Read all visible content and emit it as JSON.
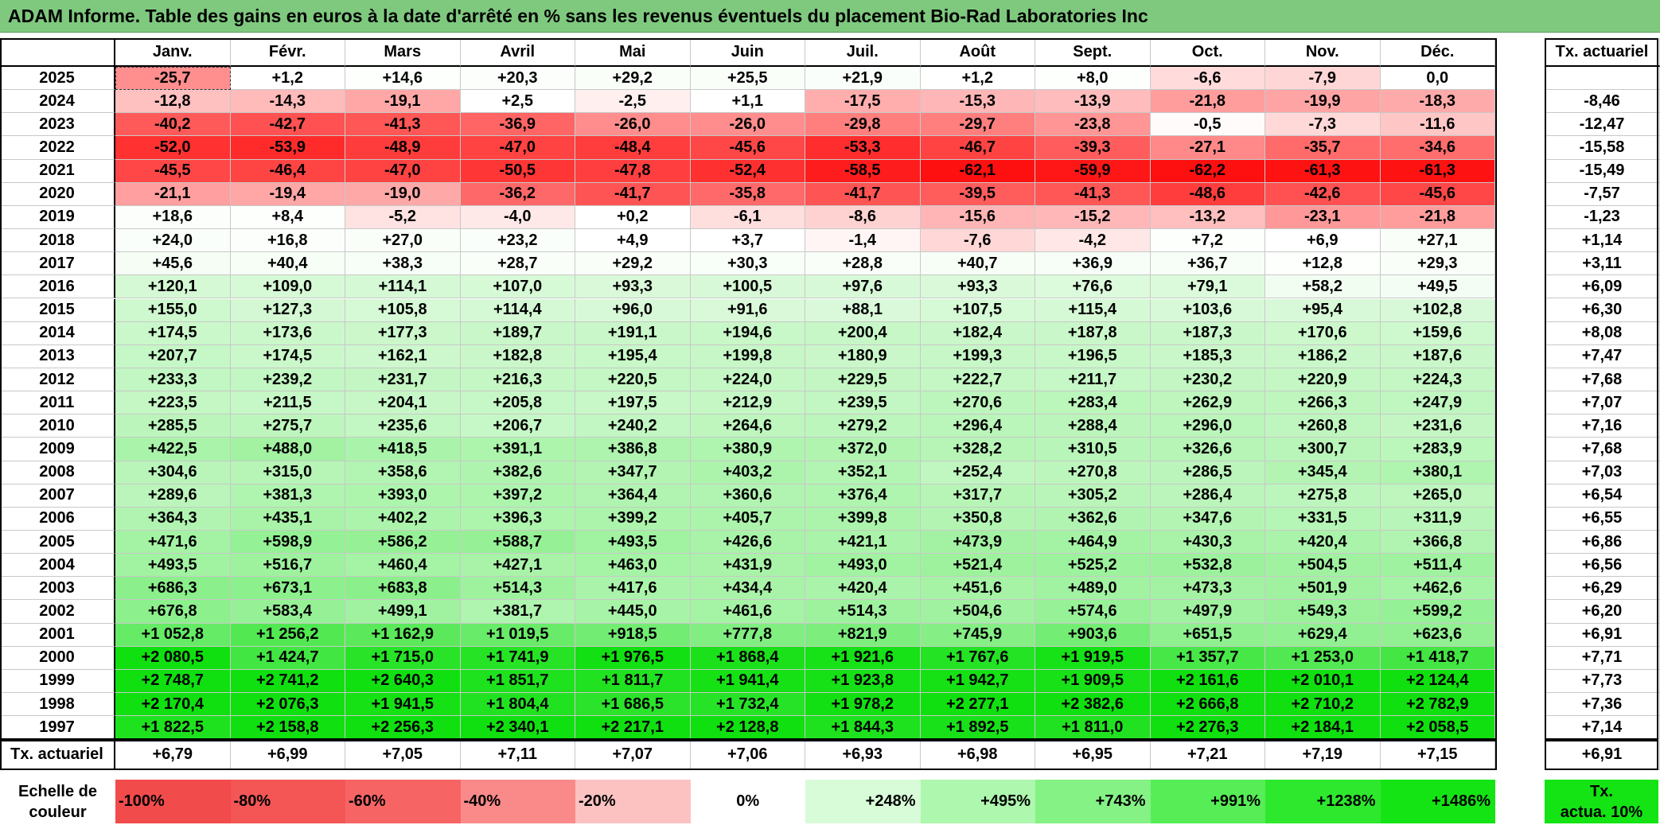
{
  "title": "ADAM Informe. Table des gains en euros à la date d'arrêté en % sans les revenus éventuels du placement Bio-Rad Laboratories Inc",
  "months": [
    "Janv.",
    "Févr.",
    "Mars",
    "Avril",
    "Mai",
    "Juin",
    "Juil.",
    "Août",
    "Sept.",
    "Oct.",
    "Nov.",
    "Déc."
  ],
  "rate_header": "Tx. actuariel",
  "rows": [
    {
      "year": "2025",
      "values": [
        "-25,7",
        "+1,2",
        "+14,6",
        "+20,3",
        "+29,2",
        "+25,5",
        "+21,9",
        "+1,2",
        "+8,0",
        "-6,6",
        "-7,9",
        "0,0"
      ],
      "rate": ""
    },
    {
      "year": "2024",
      "values": [
        "-12,8",
        "-14,3",
        "-19,1",
        "+2,5",
        "-2,5",
        "+1,1",
        "-17,5",
        "-15,3",
        "-13,9",
        "-21,8",
        "-19,9",
        "-18,3"
      ],
      "rate": "-8,46"
    },
    {
      "year": "2023",
      "values": [
        "-40,2",
        "-42,7",
        "-41,3",
        "-36,9",
        "-26,0",
        "-26,0",
        "-29,8",
        "-29,7",
        "-23,8",
        "-0,5",
        "-7,3",
        "-11,6"
      ],
      "rate": "-12,47"
    },
    {
      "year": "2022",
      "values": [
        "-52,0",
        "-53,9",
        "-48,9",
        "-47,0",
        "-48,4",
        "-45,6",
        "-53,3",
        "-46,7",
        "-39,3",
        "-27,1",
        "-35,7",
        "-34,6"
      ],
      "rate": "-15,58"
    },
    {
      "year": "2021",
      "values": [
        "-45,5",
        "-46,4",
        "-47,0",
        "-50,5",
        "-47,8",
        "-52,4",
        "-58,5",
        "-62,1",
        "-59,9",
        "-62,2",
        "-61,3",
        "-61,3"
      ],
      "rate": "-15,49"
    },
    {
      "year": "2020",
      "values": [
        "-21,1",
        "-19,4",
        "-19,0",
        "-36,2",
        "-41,7",
        "-35,8",
        "-41,7",
        "-39,5",
        "-41,3",
        "-48,6",
        "-42,6",
        "-45,6"
      ],
      "rate": "-7,57"
    },
    {
      "year": "2019",
      "values": [
        "+18,6",
        "+8,4",
        "-5,2",
        "-4,0",
        "+0,2",
        "-6,1",
        "-8,6",
        "-15,6",
        "-15,2",
        "-13,2",
        "-23,1",
        "-21,8"
      ],
      "rate": "-1,23"
    },
    {
      "year": "2018",
      "values": [
        "+24,0",
        "+16,8",
        "+27,0",
        "+23,2",
        "+4,9",
        "+3,7",
        "-1,4",
        "-7,6",
        "-4,2",
        "+7,2",
        "+6,9",
        "+27,1"
      ],
      "rate": "+1,14"
    },
    {
      "year": "2017",
      "values": [
        "+45,6",
        "+40,4",
        "+38,3",
        "+28,7",
        "+29,2",
        "+30,3",
        "+28,8",
        "+40,7",
        "+36,9",
        "+36,7",
        "+12,8",
        "+29,3"
      ],
      "rate": "+3,11"
    },
    {
      "year": "2016",
      "values": [
        "+120,1",
        "+109,0",
        "+114,1",
        "+107,0",
        "+93,3",
        "+100,5",
        "+97,6",
        "+93,3",
        "+76,6",
        "+79,1",
        "+58,2",
        "+49,5"
      ],
      "rate": "+6,09"
    },
    {
      "year": "2015",
      "values": [
        "+155,0",
        "+127,3",
        "+105,8",
        "+114,4",
        "+96,0",
        "+91,6",
        "+88,1",
        "+107,5",
        "+115,4",
        "+103,6",
        "+95,4",
        "+102,8"
      ],
      "rate": "+6,30"
    },
    {
      "year": "2014",
      "values": [
        "+174,5",
        "+173,6",
        "+177,3",
        "+189,7",
        "+191,1",
        "+194,6",
        "+200,4",
        "+182,4",
        "+187,8",
        "+187,3",
        "+170,6",
        "+159,6"
      ],
      "rate": "+8,08"
    },
    {
      "year": "2013",
      "values": [
        "+207,7",
        "+174,5",
        "+162,1",
        "+182,8",
        "+195,4",
        "+199,8",
        "+180,9",
        "+199,3",
        "+196,5",
        "+185,3",
        "+186,2",
        "+187,6"
      ],
      "rate": "+7,47"
    },
    {
      "year": "2012",
      "values": [
        "+233,3",
        "+239,2",
        "+231,7",
        "+216,3",
        "+220,5",
        "+224,0",
        "+229,5",
        "+222,7",
        "+211,7",
        "+230,2",
        "+220,9",
        "+224,3"
      ],
      "rate": "+7,68"
    },
    {
      "year": "2011",
      "values": [
        "+223,5",
        "+211,5",
        "+204,1",
        "+205,8",
        "+197,5",
        "+212,9",
        "+239,5",
        "+270,6",
        "+283,4",
        "+262,9",
        "+266,3",
        "+247,9"
      ],
      "rate": "+7,07"
    },
    {
      "year": "2010",
      "values": [
        "+285,5",
        "+275,7",
        "+235,6",
        "+206,7",
        "+240,2",
        "+264,6",
        "+279,2",
        "+296,4",
        "+288,4",
        "+296,0",
        "+260,8",
        "+231,6"
      ],
      "rate": "+7,16"
    },
    {
      "year": "2009",
      "values": [
        "+422,5",
        "+488,0",
        "+418,5",
        "+391,1",
        "+386,8",
        "+380,9",
        "+372,0",
        "+328,2",
        "+310,5",
        "+326,6",
        "+300,7",
        "+283,9"
      ],
      "rate": "+7,68"
    },
    {
      "year": "2008",
      "values": [
        "+304,6",
        "+315,0",
        "+358,6",
        "+382,6",
        "+347,7",
        "+403,2",
        "+352,1",
        "+252,4",
        "+270,8",
        "+286,5",
        "+345,4",
        "+380,1"
      ],
      "rate": "+7,03"
    },
    {
      "year": "2007",
      "values": [
        "+289,6",
        "+381,3",
        "+393,0",
        "+397,2",
        "+364,4",
        "+360,6",
        "+376,4",
        "+317,7",
        "+305,2",
        "+286,4",
        "+275,8",
        "+265,0"
      ],
      "rate": "+6,54"
    },
    {
      "year": "2006",
      "values": [
        "+364,3",
        "+435,1",
        "+402,2",
        "+396,3",
        "+399,2",
        "+405,7",
        "+399,8",
        "+350,8",
        "+362,6",
        "+347,6",
        "+331,5",
        "+311,9"
      ],
      "rate": "+6,55"
    },
    {
      "year": "2005",
      "values": [
        "+471,6",
        "+598,9",
        "+586,2",
        "+588,7",
        "+493,5",
        "+426,6",
        "+421,1",
        "+473,9",
        "+464,9",
        "+430,3",
        "+420,4",
        "+366,8"
      ],
      "rate": "+6,86"
    },
    {
      "year": "2004",
      "values": [
        "+493,5",
        "+516,7",
        "+460,4",
        "+427,1",
        "+463,0",
        "+431,9",
        "+493,0",
        "+521,4",
        "+525,2",
        "+532,8",
        "+504,5",
        "+511,4"
      ],
      "rate": "+6,56"
    },
    {
      "year": "2003",
      "values": [
        "+686,3",
        "+673,1",
        "+683,8",
        "+514,3",
        "+417,6",
        "+434,4",
        "+420,4",
        "+451,6",
        "+489,0",
        "+473,3",
        "+501,9",
        "+462,6"
      ],
      "rate": "+6,29"
    },
    {
      "year": "2002",
      "values": [
        "+676,8",
        "+583,4",
        "+499,1",
        "+381,7",
        "+445,0",
        "+461,6",
        "+514,3",
        "+504,6",
        "+574,6",
        "+497,9",
        "+549,3",
        "+599,2"
      ],
      "rate": "+6,20"
    },
    {
      "year": "2001",
      "values": [
        "+1 052,8",
        "+1 256,2",
        "+1 162,9",
        "+1 019,5",
        "+918,5",
        "+777,8",
        "+821,9",
        "+745,9",
        "+903,6",
        "+651,5",
        "+629,4",
        "+623,6"
      ],
      "rate": "+6,91"
    },
    {
      "year": "2000",
      "values": [
        "+2 080,5",
        "+1 424,7",
        "+1 715,0",
        "+1 741,9",
        "+1 976,5",
        "+1 868,4",
        "+1 921,6",
        "+1 767,6",
        "+1 919,5",
        "+1 357,7",
        "+1 253,0",
        "+1 418,7"
      ],
      "rate": "+7,71"
    },
    {
      "year": "1999",
      "values": [
        "+2 748,7",
        "+2 741,2",
        "+2 640,3",
        "+1 851,7",
        "+1 811,7",
        "+1 941,4",
        "+1 923,8",
        "+1 942,7",
        "+1 909,5",
        "+2 161,6",
        "+2 010,1",
        "+2 124,4"
      ],
      "rate": "+7,73"
    },
    {
      "year": "1998",
      "values": [
        "+2 170,4",
        "+2 076,3",
        "+1 941,5",
        "+1 804,4",
        "+1 686,5",
        "+1 732,4",
        "+1 978,2",
        "+2 277,1",
        "+2 382,6",
        "+2 666,8",
        "+2 710,2",
        "+2 782,9"
      ],
      "rate": "+7,36"
    },
    {
      "year": "1997",
      "values": [
        "+1 822,5",
        "+2 158,8",
        "+2 256,3",
        "+2 340,1",
        "+2 217,1",
        "+2 128,8",
        "+1 844,3",
        "+1 892,5",
        "+1 811,0",
        "+2 276,3",
        "+2 184,1",
        "+2 058,5"
      ],
      "rate": "+7,14"
    }
  ],
  "footer": {
    "label": "Tx. actuariel",
    "values": [
      "+6,79",
      "+6,99",
      "+7,05",
      "+7,11",
      "+7,07",
      "+7,06",
      "+6,93",
      "+6,98",
      "+6,95",
      "+7,21",
      "+7,19",
      "+7,15"
    ],
    "rate": "+6,91"
  },
  "legend": {
    "label_line1": "Echelle de",
    "label_line2": "couleur",
    "items": [
      {
        "text": "-100%",
        "color": "#f24b4b"
      },
      {
        "text": "-80%",
        "color": "#f45656"
      },
      {
        "text": "-60%",
        "color": "#f76464"
      },
      {
        "text": "-40%",
        "color": "#fa8a8a"
      },
      {
        "text": "-20%",
        "color": "#fcc2c2"
      },
      {
        "text": "0%",
        "color": "#ffffff"
      },
      {
        "text": "+248%",
        "color": "#d8fbd8"
      },
      {
        "text": "+495%",
        "color": "#aef7ae"
      },
      {
        "text": "+743%",
        "color": "#84f284"
      },
      {
        "text": "+991%",
        "color": "#57ed57"
      },
      {
        "text": "+1238%",
        "color": "#2ee82e"
      },
      {
        "text": "+1486%",
        "color": "#14e414"
      }
    ],
    "rate_line1": "Tx.",
    "rate_line2": "actua. 10%",
    "rate_color": "#14e414"
  }
}
